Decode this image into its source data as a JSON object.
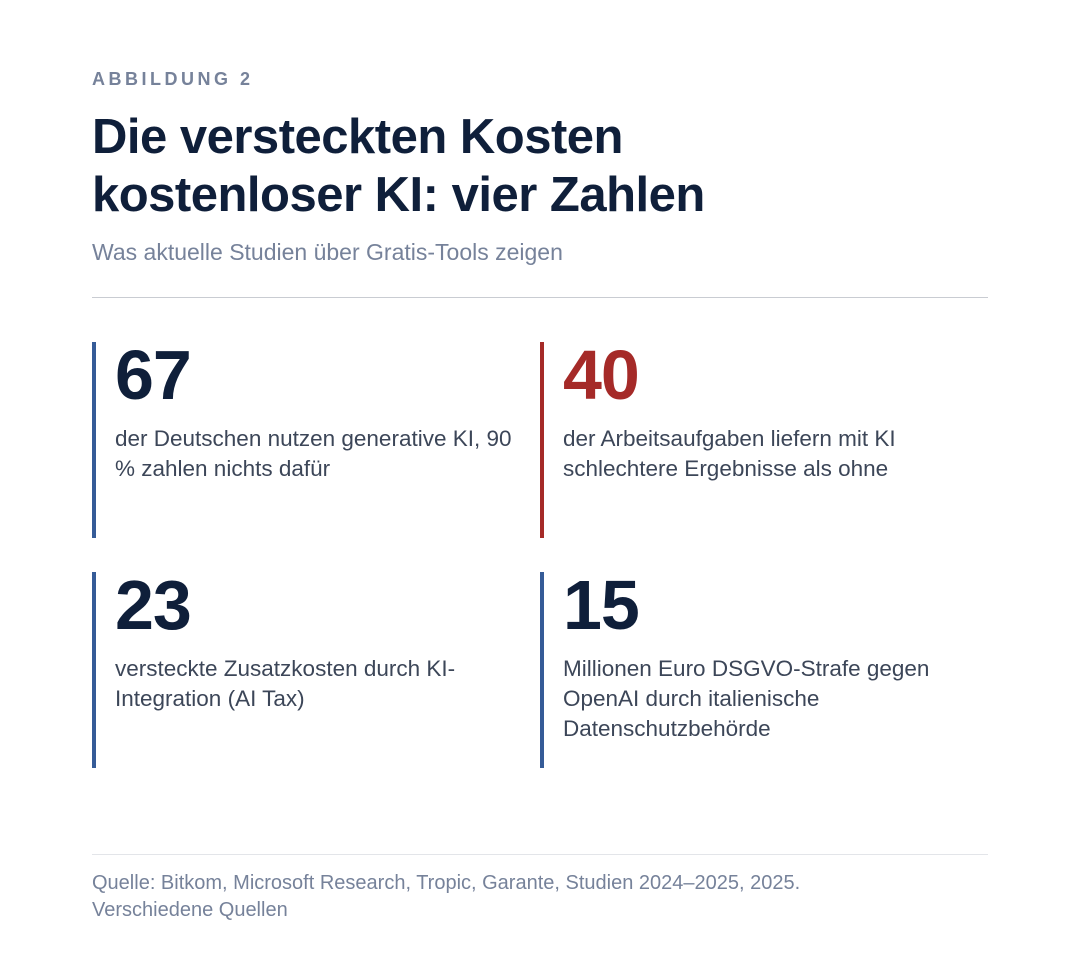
{
  "figure": {
    "eyebrow": "ABBILDUNG 2",
    "title_lines": [
      "Die versteckten Kosten",
      "kostenloser KI: vier Zahlen"
    ],
    "subtitle": "Was aktuelle Studien über Gratis-Tools zeigen"
  },
  "stats": [
    {
      "value": "67",
      "description": "der Deutschen nutzen generative KI, 90 % zahlen nichts dafür",
      "color": "#0f1f3a",
      "bar_color": "#355b97"
    },
    {
      "value": "40",
      "description": "der Arbeitsaufgaben liefern mit KI schlechtere Ergebnisse als ohne",
      "color": "#a52a28",
      "bar_color": "#a52a28"
    },
    {
      "value": "23",
      "description": "versteckte Zusatzkosten durch KI-Integration (AI Tax)",
      "color": "#0f1f3a",
      "bar_color": "#355b97"
    },
    {
      "value": "15",
      "description": "Millionen Euro DSGVO-Strafe gegen OpenAI durch italienische Datenschutzbehörde",
      "color": "#0f1f3a",
      "bar_color": "#355b97"
    }
  ],
  "source": {
    "line1": "Quelle: Bitkom, Microsoft Research, Tropic, Garante, Studien 2024–2025, 2025.",
    "line2": "Verschiedene Quellen"
  }
}
